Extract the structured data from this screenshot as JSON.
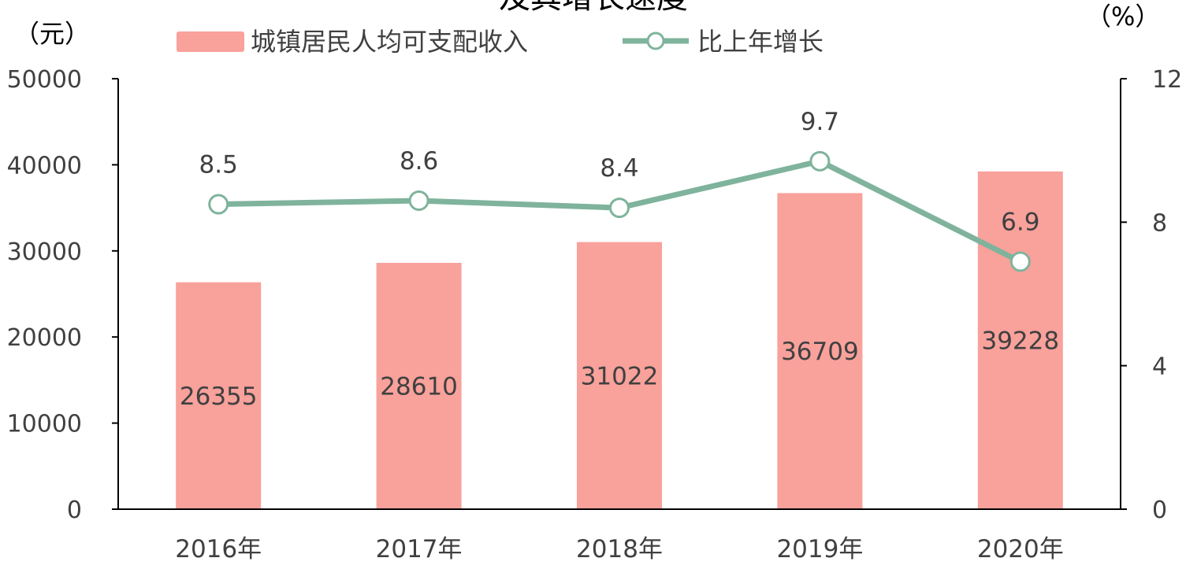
{
  "chart_data": {
    "type": "bar",
    "title": "及其增长速度",
    "categories": [
      "2016年",
      "2017年",
      "2018年",
      "2019年",
      "2020年"
    ],
    "series": [
      {
        "name": "城镇居民人均可支配收入",
        "type": "bar",
        "axis": "left",
        "values": [
          26355,
          28610,
          31022,
          36709,
          39228
        ]
      },
      {
        "name": "比上年增长",
        "type": "line",
        "axis": "right",
        "values": [
          8.5,
          8.6,
          8.4,
          9.7,
          6.9
        ]
      }
    ],
    "y_left": {
      "unit": "（元）",
      "ylim": [
        0,
        50000
      ],
      "ticks": [
        0,
        10000,
        20000,
        30000,
        40000,
        50000
      ]
    },
    "y_right": {
      "unit": "（%）",
      "ylim": [
        0,
        12
      ],
      "ticks": [
        0,
        4,
        8,
        12
      ]
    },
    "grid": false,
    "legend": "top-center"
  },
  "colors": {
    "bar": "#f9a19b",
    "line": "#7fb39c",
    "marker_fill": "#ffffff",
    "axis": "#000000",
    "text": "#404040"
  }
}
